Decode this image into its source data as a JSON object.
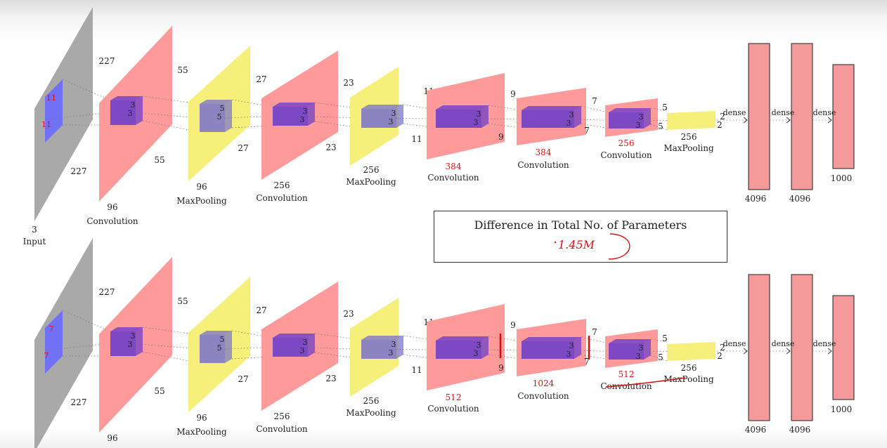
{
  "colors": {
    "input": "#9a9a9a",
    "convolution": "#ff9a9a",
    "maxpooling": "#f6f07a",
    "kernel": "#6f3fc8",
    "kernel_on_yellow": "#7f78c8",
    "input_kernel": "#6a6aff",
    "dense": "#f59a9a",
    "highlight": "#d11111"
  },
  "networks": [
    {
      "input": {
        "depth": "3",
        "label": "Input",
        "h": "227",
        "w": "227",
        "kernel_a": "11",
        "kernel_b": "11"
      },
      "layers": [
        {
          "kind": "conv",
          "label": "Convolution",
          "depth": "96",
          "top_dim": "227",
          "k1": "3",
          "k2": "3",
          "right_top": "55",
          "right_bottom": "55",
          "depth_red": false
        },
        {
          "kind": "pool",
          "label": "MaxPooling",
          "depth": "96",
          "k1": "5",
          "k2": "5",
          "right_top": "27",
          "right_bottom": "27",
          "depth_red": false
        },
        {
          "kind": "conv",
          "label": "Convolution",
          "depth": "256",
          "k1": "3",
          "k2": "3",
          "right_top": "23",
          "right_bottom": "23",
          "depth_red": false
        },
        {
          "kind": "pool",
          "label": "MaxPooling",
          "depth": "256",
          "k1": "3",
          "k2": "3",
          "right_top": "11",
          "right_bottom": "11",
          "depth_red": false
        },
        {
          "kind": "conv",
          "label": "Convolution",
          "depth": "384",
          "k1": "3",
          "k2": "3",
          "right_top": "9",
          "right_bottom": "9",
          "depth_red": true
        },
        {
          "kind": "conv",
          "label": "Convolution",
          "depth": "384",
          "k1": "3",
          "k2": "3",
          "right_top": "7",
          "right_bottom": "7",
          "depth_red": true
        },
        {
          "kind": "conv",
          "label": "Convolution",
          "depth": "256",
          "k1": "3",
          "k2": "3",
          "right_top": "5",
          "right_bottom": "5",
          "depth_red": true
        },
        {
          "kind": "pool_small",
          "label": "MaxPooling",
          "depth": "256",
          "right_top": "2",
          "right_bottom": "2",
          "depth_red": false
        }
      ],
      "dense": [
        {
          "label": "dense",
          "units": "4096"
        },
        {
          "label": "dense",
          "units": "4096"
        },
        {
          "label": "dense",
          "units": "1000"
        }
      ]
    },
    {
      "input": {
        "depth": "",
        "label": "",
        "h": "227",
        "w": "227",
        "kernel_a": "7",
        "kernel_b": "7"
      },
      "layers": [
        {
          "kind": "conv",
          "label": "Convolution",
          "depth": "96",
          "top_dim": "227",
          "k1": "3",
          "k2": "3",
          "right_top": "55",
          "right_bottom": "55",
          "depth_red": false
        },
        {
          "kind": "pool",
          "label": "MaxPooling",
          "depth": "96",
          "k1": "5",
          "k2": "5",
          "right_top": "27",
          "right_bottom": "27",
          "depth_red": false
        },
        {
          "kind": "conv",
          "label": "Convolution",
          "depth": "256",
          "k1": "3",
          "k2": "3",
          "right_top": "23",
          "right_bottom": "23",
          "depth_red": false
        },
        {
          "kind": "pool",
          "label": "MaxPooling",
          "depth": "256",
          "k1": "3",
          "k2": "3",
          "right_top": "11",
          "right_bottom": "11",
          "depth_red": false
        },
        {
          "kind": "conv",
          "label": "Convolution",
          "depth": "512",
          "k1": "3",
          "k2": "3",
          "right_top": "9",
          "right_bottom": "9",
          "depth_red": true
        },
        {
          "kind": "conv",
          "label": "Convolution",
          "depth": "1024",
          "k1": "3",
          "k2": "3",
          "right_top": "7",
          "right_bottom": "7",
          "depth_red": true
        },
        {
          "kind": "conv",
          "label": "Convolution",
          "depth": "512",
          "k1": "3",
          "k2": "3",
          "right_top": "5",
          "right_bottom": "5",
          "depth_red": true
        },
        {
          "kind": "pool_small",
          "label": "MaxPooling",
          "depth": "256",
          "right_top": "2",
          "right_bottom": "2",
          "depth_red": false
        }
      ],
      "dense": [
        {
          "label": "dense",
          "units": "4096"
        },
        {
          "label": "dense",
          "units": "4096"
        },
        {
          "label": "dense",
          "units": "1000"
        }
      ]
    }
  ],
  "comparison": {
    "title": "Difference in Total No. of Parameters",
    "value": "1.45M"
  }
}
